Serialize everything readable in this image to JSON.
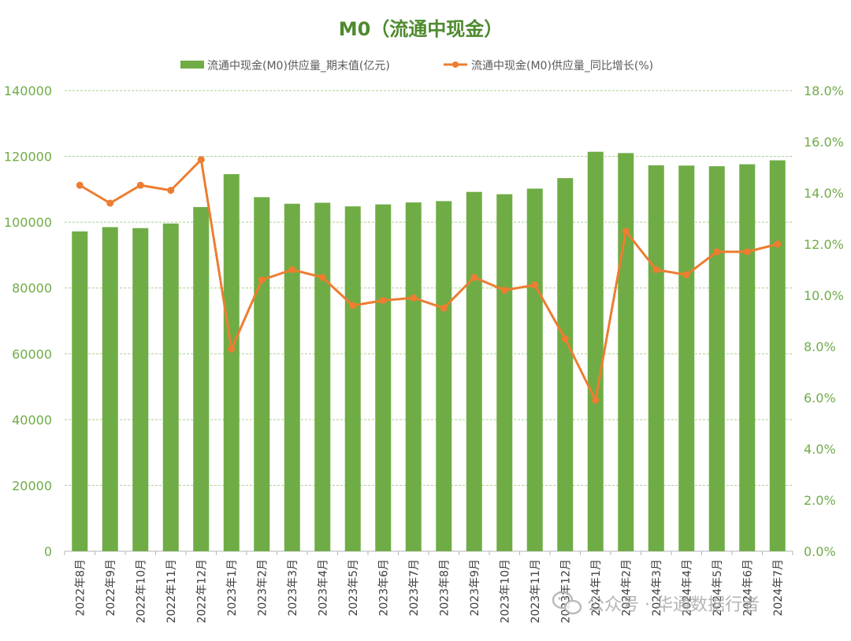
{
  "colors": {
    "title": "#4e8a2e",
    "bar": "#6fac46",
    "line": "#ed7d31",
    "axis_text": "#6fac46",
    "grid": "#a9d18e",
    "legend_text": "#5a5a5a",
    "tick_text": "#404040",
    "watermark": "#b0b0b0"
  },
  "watermark": {
    "text": "公众号 · 华通数据行者",
    "icon": "wechat-icon"
  },
  "chart_data": {
    "type": "bar",
    "title": "M0（流通中现金）",
    "categories": [
      "2022年8月",
      "2022年9月",
      "2022年10月",
      "2022年11月",
      "2022年12月",
      "2023年1月",
      "2023年2月",
      "2023年3月",
      "2023年4月",
      "2023年5月",
      "2023年6月",
      "2023年7月",
      "2023年8月",
      "2023年9月",
      "2023年10月",
      "2023年11月",
      "2023年12月",
      "2024年1月",
      "2024年2月",
      "2024年3月",
      "2024年4月",
      "2024年5月",
      "2024年6月",
      "2024年7月"
    ],
    "series": [
      {
        "name": "流通中现金(M0)供应量_期末值(亿元)",
        "type": "bar",
        "axis": "left",
        "values": [
          97200,
          98500,
          98200,
          99600,
          104600,
          114600,
          107600,
          105600,
          105900,
          104800,
          105400,
          106000,
          106400,
          109200,
          108500,
          110200,
          113400,
          121400,
          121000,
          117300,
          117200,
          117000,
          117600,
          118800
        ]
      },
      {
        "name": "流通中现金(M0)供应量_同比增长(%)",
        "type": "line",
        "axis": "right",
        "values": [
          14.3,
          13.6,
          14.3,
          14.1,
          15.3,
          7.9,
          10.6,
          11.0,
          10.7,
          9.6,
          9.8,
          9.9,
          9.5,
          10.7,
          10.2,
          10.4,
          8.3,
          5.9,
          12.5,
          11.0,
          10.8,
          11.7,
          11.7,
          12.0
        ]
      }
    ],
    "y_left": {
      "min": 0,
      "max": 140000,
      "step": 20000,
      "tick_labels": [
        "0",
        "20000",
        "40000",
        "60000",
        "80000",
        "100000",
        "120000",
        "140000"
      ]
    },
    "y_right": {
      "min": 0,
      "max": 18,
      "step": 2,
      "tick_labels": [
        "0.0%",
        "2.0%",
        "4.0%",
        "6.0%",
        "8.0%",
        "10.0%",
        "12.0%",
        "14.0%",
        "16.0%",
        "18.0%"
      ]
    },
    "grid": true,
    "legend_position": "top-center"
  }
}
